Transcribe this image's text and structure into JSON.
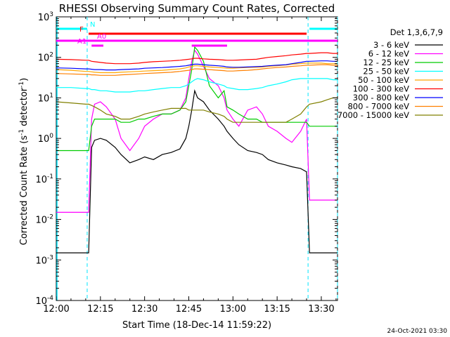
{
  "chart_data": {
    "type": "line",
    "title": "RHESSI Observing Summary Count Rates, Corrected",
    "xlabel": "Start Time (18-Dec-14 11:59:22)",
    "ylabel_main": "Corrected Count Rate (s",
    "ylabel_sup": "-1",
    "ylabel_mid": " detector",
    "ylabel_sup2": "-1",
    "ylabel_end": ")",
    "y_scale": "log",
    "ylim": [
      0.0001,
      1000
    ],
    "xlim": [
      "12:00",
      "13:35"
    ],
    "x_ticks": [
      "12:00",
      "12:15",
      "12:30",
      "12:45",
      "13:00",
      "13:15",
      "13:30"
    ],
    "y_ticks": [
      {
        "base": "10",
        "exp": "3"
      },
      {
        "base": "10",
        "exp": "2"
      },
      {
        "base": "10",
        "exp": "1"
      },
      {
        "base": "10",
        "exp": "0"
      },
      {
        "base": "10",
        "exp": "-1"
      },
      {
        "base": "10",
        "exp": "-2"
      },
      {
        "base": "10",
        "exp": "-3"
      },
      {
        "base": "10",
        "exp": "-4"
      }
    ],
    "legend_title": "Det 1,3,6,7,9",
    "legend_position": "right",
    "footer": "24-Oct-2021 03:30",
    "night_boundaries_min": [
      10.5,
      85.5,
      95.5
    ],
    "series": [
      {
        "name": "3 - 6 keV",
        "color": "#000000",
        "x": [
          0,
          5,
          10,
          11,
          12,
          13,
          15,
          17,
          20,
          22,
          25,
          28,
          30,
          33,
          36,
          39,
          42,
          44,
          45,
          46,
          47,
          48,
          50,
          52,
          55,
          57,
          58,
          60,
          62,
          65,
          68,
          70,
          72,
          75,
          78,
          80,
          83,
          85,
          86,
          90,
          92,
          94,
          95.5
        ],
        "y": [
          0.0015,
          0.0015,
          0.0015,
          0.0015,
          0.6,
          0.9,
          1.0,
          0.9,
          0.6,
          0.4,
          0.25,
          0.3,
          0.35,
          0.3,
          0.4,
          0.45,
          0.55,
          1.0,
          2.0,
          5.0,
          15,
          10,
          8,
          5,
          3,
          2,
          1.5,
          1.0,
          0.7,
          0.5,
          0.45,
          0.4,
          0.3,
          0.25,
          0.22,
          0.2,
          0.18,
          0.15,
          0.0015,
          0.0015,
          0.0015,
          0.0015,
          0.0015
        ]
      },
      {
        "name": "6 - 12 keV",
        "color": "#ff00ff",
        "x": [
          0,
          5,
          10,
          11,
          12,
          13,
          15,
          17,
          20,
          22,
          25,
          28,
          30,
          33,
          36,
          39,
          42,
          44,
          45,
          46,
          47,
          48,
          50,
          52,
          55,
          57,
          58,
          60,
          62,
          65,
          68,
          70,
          72,
          75,
          78,
          80,
          83,
          85,
          86,
          90,
          92,
          94,
          95.5
        ],
        "y": [
          0.015,
          0.015,
          0.015,
          0.015,
          3,
          7,
          8,
          6,
          3,
          1,
          0.5,
          1.0,
          2,
          3,
          4,
          4,
          5,
          10,
          30,
          80,
          150,
          120,
          60,
          30,
          20,
          10,
          5,
          3,
          2,
          5,
          6,
          4,
          2,
          1.5,
          1.0,
          0.8,
          1.5,
          3,
          0.03,
          0.03,
          0.03,
          0.03,
          0.03
        ]
      },
      {
        "name": "12 - 25 keV",
        "color": "#00cc00",
        "x": [
          0,
          5,
          10,
          11,
          12,
          13,
          15,
          17,
          20,
          22,
          25,
          28,
          30,
          33,
          36,
          39,
          42,
          44,
          45,
          46,
          47,
          48,
          50,
          52,
          55,
          57,
          58,
          60,
          62,
          65,
          68,
          70,
          72,
          75,
          78,
          80,
          83,
          85,
          86,
          90,
          92,
          94,
          95.5
        ],
        "y": [
          0.5,
          0.5,
          0.5,
          0.5,
          2,
          3,
          3,
          3,
          3,
          2.5,
          2.5,
          3,
          3,
          3.5,
          4,
          4,
          5,
          8,
          20,
          50,
          180,
          150,
          80,
          20,
          10,
          15,
          6,
          5,
          4,
          3,
          3,
          2.5,
          2.5,
          2.5,
          2.5,
          2.5,
          2.5,
          2.5,
          2,
          2,
          2,
          2,
          2
        ]
      },
      {
        "name": "25 - 50 keV",
        "color": "#00ffff",
        "x": [
          0,
          5,
          10,
          11,
          12,
          13,
          15,
          17,
          20,
          22,
          25,
          28,
          30,
          33,
          36,
          39,
          42,
          44,
          45,
          46,
          47,
          48,
          50,
          52,
          55,
          57,
          58,
          60,
          62,
          65,
          68,
          70,
          72,
          75,
          78,
          80,
          83,
          85,
          86,
          90,
          92,
          94,
          95.5
        ],
        "y": [
          18,
          18,
          17,
          17,
          16,
          16,
          15,
          15,
          14,
          14,
          14,
          15,
          15,
          16,
          17,
          18,
          18,
          20,
          22,
          25,
          28,
          30,
          28,
          25,
          22,
          20,
          18,
          17,
          16,
          16,
          17,
          18,
          20,
          22,
          25,
          28,
          30,
          30,
          30,
          30,
          30,
          28,
          28
        ]
      },
      {
        "name": "50 - 100 keV",
        "color": "#ffa500",
        "x": [
          0,
          5,
          10,
          11,
          12,
          13,
          15,
          17,
          20,
          22,
          25,
          28,
          30,
          33,
          36,
          39,
          42,
          44,
          45,
          46,
          47,
          48,
          50,
          52,
          55,
          57,
          58,
          60,
          62,
          65,
          68,
          70,
          72,
          75,
          78,
          80,
          83,
          85,
          86,
          90,
          92,
          94,
          95.5
        ],
        "y": [
          50,
          48,
          45,
          45,
          44,
          43,
          42,
          42,
          42,
          43,
          44,
          45,
          46,
          47,
          48,
          50,
          52,
          55,
          58,
          60,
          62,
          62,
          60,
          58,
          56,
          55,
          54,
          54,
          55,
          56,
          57,
          58,
          60,
          62,
          65,
          68,
          70,
          72,
          72,
          72,
          70,
          70,
          70
        ]
      },
      {
        "name": "100 - 300 keV",
        "color": "#ff0000",
        "x": [
          0,
          5,
          10,
          11,
          12,
          13,
          15,
          17,
          20,
          22,
          25,
          28,
          30,
          33,
          36,
          39,
          42,
          44,
          45,
          46,
          47,
          48,
          50,
          52,
          55,
          57,
          58,
          60,
          62,
          65,
          68,
          70,
          72,
          75,
          78,
          80,
          83,
          85,
          86,
          90,
          92,
          94,
          95.5
        ],
        "y": [
          90,
          88,
          85,
          85,
          80,
          78,
          75,
          72,
          70,
          70,
          70,
          72,
          75,
          78,
          80,
          82,
          85,
          88,
          90,
          92,
          95,
          95,
          92,
          90,
          88,
          86,
          85,
          85,
          86,
          88,
          90,
          95,
          100,
          105,
          110,
          115,
          120,
          125,
          125,
          130,
          130,
          125,
          125
        ]
      },
      {
        "name": "300 - 800 keV",
        "color": "#0000ff",
        "x": [
          0,
          5,
          10,
          11,
          12,
          13,
          15,
          17,
          20,
          22,
          25,
          28,
          30,
          33,
          36,
          39,
          42,
          44,
          45,
          46,
          47,
          48,
          50,
          52,
          55,
          57,
          58,
          60,
          62,
          65,
          68,
          70,
          72,
          75,
          78,
          80,
          83,
          85,
          86,
          90,
          92,
          94,
          95.5
        ],
        "y": [
          55,
          54,
          52,
          52,
          51,
          50,
          50,
          49,
          49,
          50,
          51,
          52,
          54,
          55,
          56,
          58,
          60,
          62,
          64,
          66,
          68,
          68,
          66,
          64,
          62,
          60,
          58,
          57,
          57,
          58,
          59,
          60,
          62,
          64,
          66,
          70,
          75,
          80,
          80,
          82,
          82,
          80,
          80
        ]
      },
      {
        "name": "800 - 7000 keV",
        "color": "#ff8000",
        "x": [
          0,
          5,
          10,
          11,
          12,
          13,
          15,
          17,
          20,
          22,
          25,
          28,
          30,
          33,
          36,
          39,
          42,
          44,
          45,
          46,
          47,
          48,
          50,
          52,
          55,
          57,
          58,
          60,
          62,
          65,
          68,
          70,
          72,
          75,
          78,
          80,
          83,
          85,
          86,
          90,
          92,
          94,
          95.5
        ],
        "y": [
          40,
          39,
          38,
          38,
          37,
          37,
          36,
          36,
          36,
          37,
          38,
          39,
          40,
          41,
          42,
          43,
          45,
          47,
          48,
          50,
          52,
          52,
          51,
          50,
          48,
          47,
          46,
          46,
          47,
          48,
          50,
          52,
          54,
          56,
          58,
          60,
          62,
          64,
          64,
          66,
          66,
          64,
          64
        ]
      },
      {
        "name": "7000 - 15000 keV",
        "color": "#808000",
        "x": [
          0,
          5,
          10,
          11,
          12,
          13,
          15,
          17,
          20,
          22,
          25,
          28,
          30,
          33,
          36,
          39,
          42,
          44,
          45,
          46,
          47,
          48,
          50,
          52,
          55,
          57,
          58,
          60,
          62,
          65,
          68,
          70,
          72,
          75,
          78,
          80,
          83,
          85,
          86,
          90,
          92,
          94,
          95.5
        ],
        "y": [
          8,
          7.5,
          7,
          7,
          6.5,
          6,
          5,
          4,
          3.5,
          3,
          3,
          3.5,
          4,
          4.5,
          5,
          5.5,
          5.5,
          5.5,
          5,
          5,
          5,
          5,
          5,
          4.5,
          4,
          3.5,
          3,
          2.5,
          2.5,
          2.5,
          2.5,
          2.5,
          2.5,
          2.5,
          2.5,
          3,
          4,
          6,
          7,
          8,
          9,
          10,
          10
        ]
      }
    ],
    "flags": [
      {
        "label": "N",
        "color": "#00ffff",
        "segments": [
          [
            0,
            10.5
          ],
          [
            86,
            95.5
          ]
        ]
      },
      {
        "label": "F",
        "color": "#ff0000",
        "segments": [
          [
            11,
            85
          ]
        ]
      },
      {
        "label": "A0",
        "color": "#ff00ff",
        "segments": [
          [
            0,
            95.5
          ]
        ]
      },
      {
        "label": "A1",
        "color": "#ff00ff",
        "segments": [
          [
            12,
            16
          ],
          [
            46,
            58
          ]
        ]
      }
    ]
  }
}
